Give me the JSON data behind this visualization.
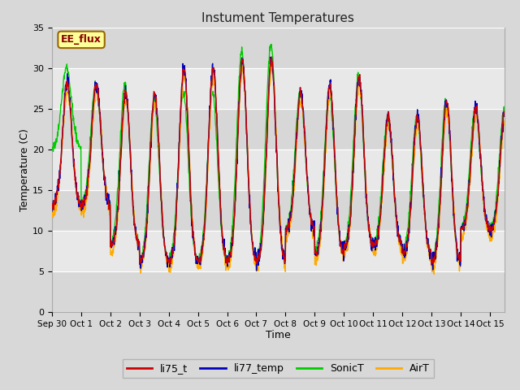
{
  "title": "Instument Temperatures",
  "xlabel": "Time",
  "ylabel": "Temperature (C)",
  "ylim": [
    0,
    35
  ],
  "yticks": [
    0,
    5,
    10,
    15,
    20,
    25,
    30,
    35
  ],
  "fig_bg_color": "#d8d8d8",
  "plot_bg_color": "#e8e8e8",
  "band_color": "#cccccc",
  "grid_color": "#ffffff",
  "xtick_labels": [
    "Sep 30",
    "Oct 1",
    "Oct 2",
    "Oct 3",
    "Oct 4",
    "Oct 5",
    "Oct 6",
    "Oct 7",
    "Oct 8",
    "Oct 9",
    "Oct 10",
    "Oct 11",
    "Oct 12",
    "Oct 13",
    "Oct 14",
    "Oct 15"
  ],
  "legend_entries": [
    "li75_t",
    "li77_temp",
    "SonicT",
    "AirT"
  ],
  "line_colors": [
    "#cc0000",
    "#0000bb",
    "#00cc00",
    "#ffaa00"
  ],
  "eef_label": "EE_flux",
  "eef_bg": "#ffff99",
  "eef_border": "#996600",
  "eef_text_color": "#880000"
}
